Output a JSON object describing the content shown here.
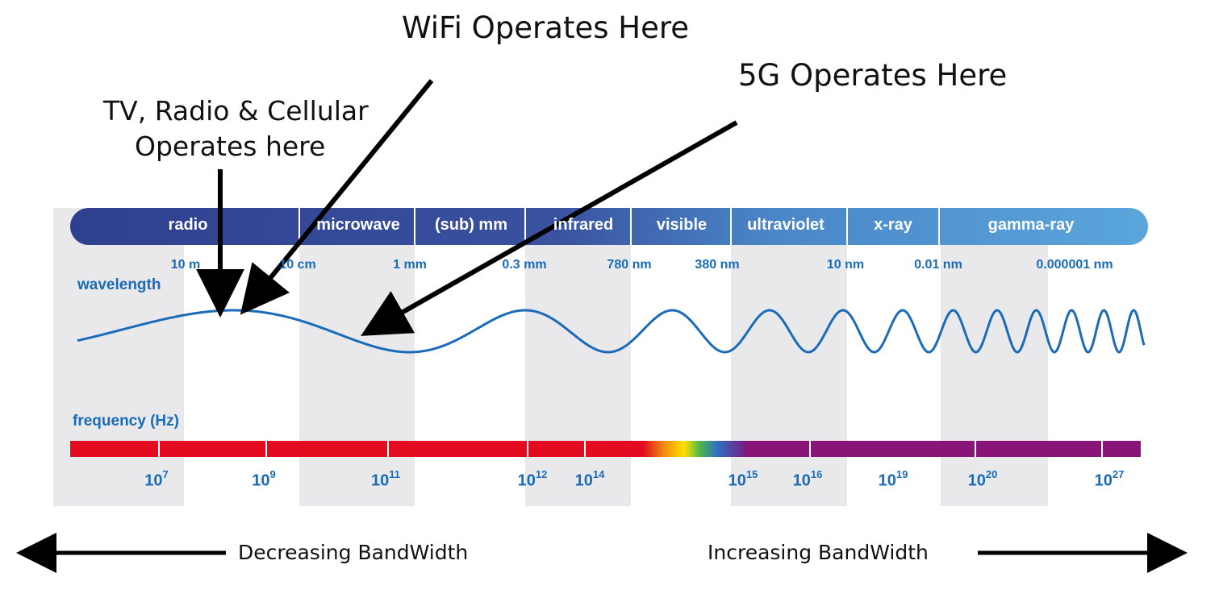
{
  "colors": {
    "stripe": "#e9e9eb",
    "band_dark": "#2e3f8f",
    "band_light": "#5aa6dc",
    "wave": "#1a6bb8",
    "red": "#e30b1f",
    "purple": "#8a1578",
    "arrow": "#000000"
  },
  "annotations": {
    "tv_radio_line1": "TV, Radio & Cellular",
    "tv_radio_line2": "Operates here",
    "wifi": "WiFi Operates Here",
    "fiveg": "5G Operates Here"
  },
  "bands": [
    "radio",
    "microwave",
    "(sub) mm",
    "infrared",
    "visible",
    "ultraviolet",
    "x-ray",
    "gamma-ray"
  ],
  "wavelengths": [
    "10 m",
    "10 cm",
    "1 mm",
    "0.3 mm",
    "780 nm",
    "380 nm",
    "10 nm",
    "0.01 nm",
    "0.000001 nm"
  ],
  "axis_labels": {
    "wavelength": "wavelength",
    "frequency": "frequency (Hz)"
  },
  "frequencies": [
    {
      "base": "10",
      "exp": "7"
    },
    {
      "base": "10",
      "exp": "9"
    },
    {
      "base": "10",
      "exp": "11"
    },
    {
      "base": "10",
      "exp": "12"
    },
    {
      "base": "10",
      "exp": "14"
    },
    {
      "base": "10",
      "exp": "15"
    },
    {
      "base": "10",
      "exp": "16"
    },
    {
      "base": "10",
      "exp": "19"
    },
    {
      "base": "10",
      "exp": "20"
    },
    {
      "base": "10",
      "exp": "27"
    }
  ],
  "bandwidth": {
    "decreasing": "Decreasing BandWidth",
    "increasing": "Increasing BandWidth"
  }
}
